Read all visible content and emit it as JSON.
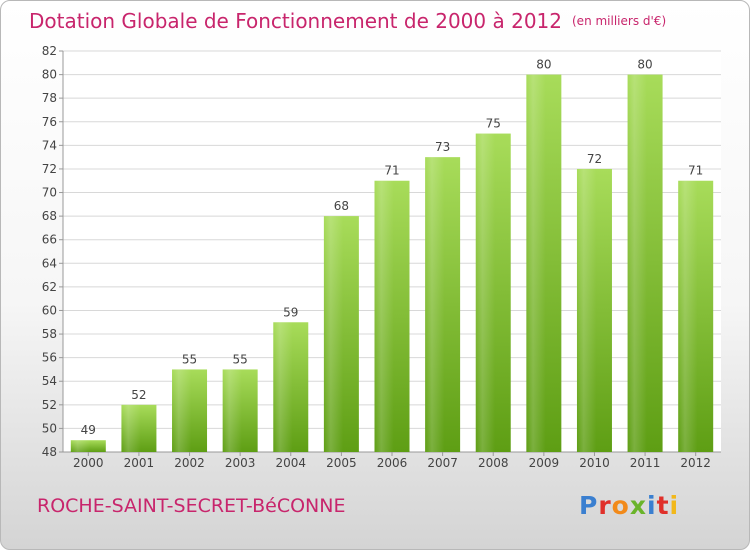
{
  "title": "Dotation Globale de Fonctionnement de 2000 à 2012",
  "unit": "(en milliers d'€)",
  "commune": "ROCHE-SAINT-SECRET-BéCONNE",
  "brand": {
    "text": "Proxiti",
    "letter_colors": [
      "#3a7fd0",
      "#e0302a",
      "#f28a1a",
      "#6ab42a",
      "#3a7fd0",
      "#e0302a",
      "#f2b81a"
    ]
  },
  "colors": {
    "title": "#c8256c",
    "bar_light": "#a8dc5a",
    "bar_dark": "#5e9e14",
    "grid": "#d8d8d8",
    "axis": "#999999",
    "label": "#444444"
  },
  "chart_data": {
    "type": "bar",
    "title": "Dotation Globale de Fonctionnement de 2000 à 2012",
    "categories": [
      "2000",
      "2001",
      "2002",
      "2003",
      "2004",
      "2005",
      "2006",
      "2007",
      "2008",
      "2009",
      "2010",
      "2011",
      "2012"
    ],
    "values": [
      49,
      52,
      55,
      55,
      59,
      68,
      71,
      73,
      75,
      80,
      72,
      80,
      71
    ],
    "ylim": [
      48,
      82
    ],
    "yticks": [
      48,
      50,
      52,
      54,
      56,
      58,
      60,
      62,
      64,
      66,
      68,
      70,
      72,
      74,
      76,
      78,
      80,
      82
    ],
    "xlabel": "",
    "ylabel": "",
    "grid": true
  }
}
